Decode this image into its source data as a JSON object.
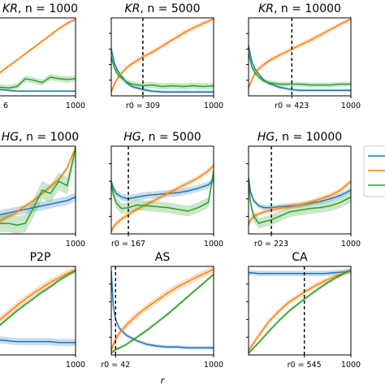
{
  "colors": {
    "blue": "#1f77b4",
    "orange": "#ff7f0e",
    "green": "#2ca02c"
  },
  "xlabel": "r",
  "legend": {
    "entries": [
      "",
      "",
      ""
    ]
  },
  "panels": [
    {
      "title_var": "KR",
      "title_n": "n = 1000",
      "title_prefix": "",
      "r0_label": "6",
      "x_max_label": "1000",
      "r0": null
    },
    {
      "title_var": "KR",
      "title_n": "n = 5000",
      "title_prefix": "",
      "r0_label": "r0 = 309",
      "x_max_label": "1000",
      "r0": 309
    },
    {
      "title_var": "KR",
      "title_n": "n = 10000",
      "title_prefix": "",
      "r0_label": "r0 = 423",
      "x_max_label": "1000",
      "r0": 423
    },
    {
      "title_var": "HG",
      "title_n": "n = 1000",
      "title_prefix": "",
      "r0_label": "",
      "x_max_label": "1000",
      "r0": null
    },
    {
      "title_var": "HG",
      "title_n": "n = 5000",
      "title_prefix": "",
      "r0_label": "r0 = 167",
      "x_max_label": "1000",
      "r0": 167
    },
    {
      "title_var": "HG",
      "title_n": "n = 10000",
      "title_prefix": "",
      "r0_label": "r0 = 223",
      "x_max_label": "1000",
      "r0": 223
    },
    {
      "title_var": "",
      "title_n": "",
      "title_prefix": "P2P",
      "r0_label": "",
      "x_max_label": "1000",
      "r0": null
    },
    {
      "title_var": "",
      "title_n": "",
      "title_prefix": "AS",
      "r0_label": "r0 = 42",
      "x_max_label": "1000",
      "r0": 42
    },
    {
      "title_var": "",
      "title_n": "",
      "title_prefix": "CA",
      "r0_label": "r0 = 545",
      "x_max_label": "1000",
      "r0": 545
    }
  ],
  "chart_data": [
    {
      "type": "line",
      "title": "KR, n = 1000",
      "xlim": [
        0,
        1000
      ],
      "ylim": [
        0,
        1
      ],
      "r0": null,
      "x": [
        0,
        100,
        200,
        300,
        400,
        500,
        600,
        700,
        800,
        900,
        1000
      ],
      "series": [
        {
          "color": "blue",
          "values": [
            0.1,
            0.08,
            0.07,
            0.06,
            0.06,
            0.06,
            0.06,
            0.06,
            0.06,
            0.06,
            0.06
          ],
          "band": 0.01
        },
        {
          "color": "orange",
          "values": [
            0.2,
            0.3,
            0.38,
            0.46,
            0.54,
            0.62,
            0.7,
            0.78,
            0.86,
            0.93,
            0.98
          ],
          "band": 0.02
        },
        {
          "color": "green",
          "values": [
            0.12,
            0.11,
            0.1,
            0.12,
            0.22,
            0.2,
            0.17,
            0.24,
            0.22,
            0.21,
            0.22
          ],
          "band": 0.04
        }
      ]
    },
    {
      "type": "line",
      "title": "KR, n = 5000",
      "xlim": [
        0,
        1000
      ],
      "ylim": [
        0,
        1
      ],
      "r0": 309,
      "x": [
        0,
        30,
        60,
        100,
        150,
        200,
        309,
        400,
        500,
        600,
        700,
        800,
        900,
        1000
      ],
      "series": [
        {
          "color": "blue",
          "values": [
            0.6,
            0.42,
            0.33,
            0.25,
            0.17,
            0.12,
            0.08,
            0.06,
            0.05,
            0.05,
            0.05,
            0.05,
            0.05,
            0.05
          ],
          "band": 0.02
        },
        {
          "color": "orange",
          "values": [
            0.05,
            0.15,
            0.22,
            0.29,
            0.36,
            0.41,
            0.5,
            0.56,
            0.64,
            0.72,
            0.8,
            0.87,
            0.93,
            0.99
          ],
          "band": 0.03
        },
        {
          "color": "green",
          "values": [
            0.5,
            0.36,
            0.28,
            0.23,
            0.18,
            0.15,
            0.13,
            0.14,
            0.12,
            0.13,
            0.12,
            0.13,
            0.12,
            0.13
          ],
          "band": 0.04
        }
      ]
    },
    {
      "type": "line",
      "title": "KR, n = 10000",
      "xlim": [
        0,
        1000
      ],
      "ylim": [
        0,
        1
      ],
      "r0": 423,
      "x": [
        0,
        30,
        60,
        100,
        150,
        200,
        300,
        423,
        500,
        600,
        700,
        800,
        900,
        1000
      ],
      "series": [
        {
          "color": "blue",
          "values": [
            0.65,
            0.45,
            0.35,
            0.28,
            0.2,
            0.16,
            0.11,
            0.08,
            0.07,
            0.07,
            0.07,
            0.07,
            0.07,
            0.07
          ],
          "band": 0.02
        },
        {
          "color": "orange",
          "values": [
            0.1,
            0.2,
            0.28,
            0.35,
            0.4,
            0.45,
            0.52,
            0.6,
            0.65,
            0.71,
            0.78,
            0.85,
            0.92,
            0.99
          ],
          "band": 0.03
        },
        {
          "color": "green",
          "values": [
            0.55,
            0.38,
            0.3,
            0.24,
            0.19,
            0.17,
            0.15,
            0.15,
            0.15,
            0.14,
            0.14,
            0.14,
            0.15,
            0.15
          ],
          "band": 0.03
        }
      ]
    },
    {
      "type": "line",
      "title": "HG, n = 1000",
      "xlim": [
        0,
        1000
      ],
      "ylim": [
        0,
        1
      ],
      "r0": null,
      "x": [
        0,
        100,
        200,
        300,
        400,
        500,
        600,
        700,
        800,
        900,
        1000
      ],
      "series": [
        {
          "color": "blue",
          "values": [
            0.2,
            0.22,
            0.24,
            0.26,
            0.28,
            0.3,
            0.32,
            0.34,
            0.36,
            0.38,
            0.42
          ],
          "band": 0.05
        },
        {
          "color": "orange",
          "values": [
            0.1,
            0.15,
            0.2,
            0.25,
            0.32,
            0.38,
            0.46,
            0.54,
            0.62,
            0.75,
            0.99
          ],
          "band": 0.03
        },
        {
          "color": "green",
          "values": [
            0.12,
            0.12,
            0.12,
            0.1,
            0.12,
            0.3,
            0.5,
            0.46,
            0.6,
            0.55,
            0.98
          ],
          "band": 0.1
        }
      ]
    },
    {
      "type": "line",
      "title": "HG, n = 5000",
      "xlim": [
        0,
        1000
      ],
      "ylim": [
        0,
        1
      ],
      "r0": 167,
      "x": [
        0,
        20,
        50,
        100,
        167,
        250,
        350,
        450,
        550,
        650,
        750,
        850,
        950,
        1000
      ],
      "series": [
        {
          "color": "blue",
          "values": [
            0.6,
            0.52,
            0.46,
            0.42,
            0.4,
            0.42,
            0.44,
            0.45,
            0.46,
            0.47,
            0.49,
            0.52,
            0.56,
            0.62
          ],
          "band": 0.04
        },
        {
          "color": "orange",
          "values": [
            0.02,
            0.08,
            0.12,
            0.17,
            0.22,
            0.28,
            0.34,
            0.4,
            0.46,
            0.52,
            0.58,
            0.64,
            0.72,
            0.78
          ],
          "band": 0.03
        },
        {
          "color": "green",
          "values": [
            0.58,
            0.45,
            0.35,
            0.29,
            0.3,
            0.33,
            0.32,
            0.31,
            0.3,
            0.28,
            0.26,
            0.3,
            0.36,
            0.72
          ],
          "band": 0.06
        }
      ]
    },
    {
      "type": "line",
      "title": "HG, n = 10000",
      "xlim": [
        0,
        1000
      ],
      "ylim": [
        0,
        1
      ],
      "r0": 223,
      "x": [
        0,
        20,
        50,
        100,
        150,
        223,
        300,
        400,
        500,
        600,
        700,
        800,
        900,
        1000
      ],
      "series": [
        {
          "color": "blue",
          "values": [
            0.65,
            0.48,
            0.38,
            0.32,
            0.3,
            0.3,
            0.31,
            0.32,
            0.33,
            0.35,
            0.37,
            0.4,
            0.44,
            0.5
          ],
          "band": 0.03
        },
        {
          "color": "orange",
          "values": [
            0.1,
            0.16,
            0.2,
            0.23,
            0.25,
            0.27,
            0.29,
            0.31,
            0.33,
            0.36,
            0.4,
            0.44,
            0.5,
            0.6
          ],
          "band": 0.03
        },
        {
          "color": "green",
          "values": [
            0.6,
            0.35,
            0.2,
            0.12,
            0.14,
            0.16,
            0.2,
            0.25,
            0.27,
            0.29,
            0.3,
            0.32,
            0.36,
            0.42
          ],
          "band": 0.06
        }
      ]
    },
    {
      "type": "line",
      "title": "P2P",
      "xlim": [
        0,
        1000
      ],
      "ylim": [
        0,
        1
      ],
      "r0": null,
      "x": [
        0,
        100,
        200,
        300,
        400,
        500,
        600,
        700,
        800,
        900,
        1000
      ],
      "series": [
        {
          "color": "blue",
          "values": [
            0.2,
            0.17,
            0.16,
            0.15,
            0.15,
            0.15,
            0.15,
            0.15,
            0.14,
            0.14,
            0.14
          ],
          "band": 0.04
        },
        {
          "color": "orange",
          "values": [
            0.3,
            0.4,
            0.48,
            0.56,
            0.63,
            0.7,
            0.76,
            0.82,
            0.87,
            0.92,
            0.96
          ],
          "band": 0.04
        },
        {
          "color": "green",
          "values": [
            0.25,
            0.34,
            0.42,
            0.5,
            0.57,
            0.64,
            0.71,
            0.77,
            0.84,
            0.9,
            0.95
          ],
          "band": 0.02
        }
      ]
    },
    {
      "type": "line",
      "title": "AS",
      "xlim": [
        0,
        1000
      ],
      "ylim": [
        0,
        1
      ],
      "r0": 42,
      "x": [
        0,
        20,
        42,
        80,
        150,
        250,
        350,
        450,
        550,
        650,
        750,
        850,
        950,
        1000
      ],
      "series": [
        {
          "color": "blue",
          "values": [
            0.95,
            0.55,
            0.4,
            0.3,
            0.22,
            0.16,
            0.12,
            0.1,
            0.09,
            0.09,
            0.08,
            0.08,
            0.08,
            0.08
          ],
          "band": 0.02
        },
        {
          "color": "orange",
          "values": [
            0.05,
            0.12,
            0.18,
            0.25,
            0.34,
            0.45,
            0.54,
            0.62,
            0.7,
            0.77,
            0.83,
            0.89,
            0.94,
            0.97
          ],
          "band": 0.04
        },
        {
          "color": "green",
          "values": [
            0.02,
            0.04,
            0.06,
            0.08,
            0.12,
            0.2,
            0.28,
            0.37,
            0.46,
            0.56,
            0.66,
            0.76,
            0.86,
            0.91
          ],
          "band": 0.02
        }
      ]
    },
    {
      "type": "line",
      "title": "CA",
      "xlim": [
        0,
        1000
      ],
      "ylim": [
        0,
        1
      ],
      "r0": 545,
      "x": [
        0,
        100,
        200,
        300,
        400,
        545,
        650,
        750,
        850,
        950,
        1000
      ],
      "series": [
        {
          "color": "blue",
          "values": [
            0.93,
            0.92,
            0.92,
            0.92,
            0.92,
            0.92,
            0.92,
            0.92,
            0.93,
            0.94,
            0.95
          ],
          "band": 0.03
        },
        {
          "color": "orange",
          "values": [
            0.05,
            0.22,
            0.38,
            0.5,
            0.6,
            0.71,
            0.78,
            0.84,
            0.89,
            0.93,
            0.95
          ],
          "band": 0.03
        },
        {
          "color": "green",
          "values": [
            0.02,
            0.14,
            0.27,
            0.39,
            0.5,
            0.63,
            0.72,
            0.8,
            0.87,
            0.93,
            0.96
          ],
          "band": 0.02
        }
      ]
    }
  ]
}
